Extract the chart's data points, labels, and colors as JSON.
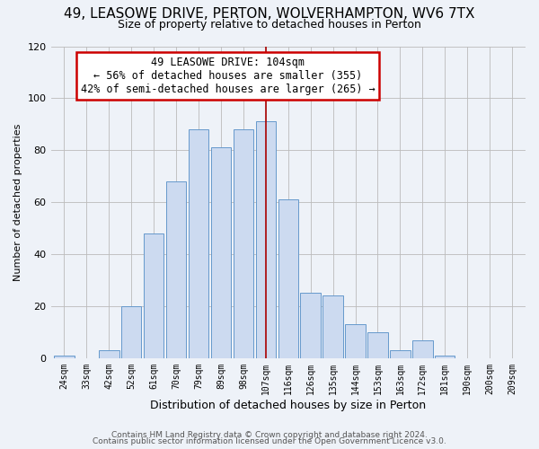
{
  "title": "49, LEASOWE DRIVE, PERTON, WOLVERHAMPTON, WV6 7TX",
  "subtitle": "Size of property relative to detached houses in Perton",
  "xlabel": "Distribution of detached houses by size in Perton",
  "ylabel": "Number of detached properties",
  "categories": [
    "24sqm",
    "33sqm",
    "42sqm",
    "52sqm",
    "61sqm",
    "70sqm",
    "79sqm",
    "89sqm",
    "98sqm",
    "107sqm",
    "116sqm",
    "126sqm",
    "135sqm",
    "144sqm",
    "153sqm",
    "163sqm",
    "172sqm",
    "181sqm",
    "190sqm",
    "200sqm",
    "209sqm"
  ],
  "values": [
    1,
    0,
    3,
    20,
    48,
    68,
    88,
    81,
    88,
    91,
    61,
    25,
    24,
    13,
    10,
    3,
    7,
    1,
    0,
    0,
    0
  ],
  "bar_color": "#ccdaf0",
  "bar_edge_color": "#6699cc",
  "property_bin_index": 9,
  "vline_color": "#aa0000",
  "annotation_line1": "49 LEASOWE DRIVE: 104sqm",
  "annotation_line2": "← 56% of detached houses are smaller (355)",
  "annotation_line3": "42% of semi-detached houses are larger (265) →",
  "annotation_box_edge_color": "#cc0000",
  "annotation_box_face_color": "#ffffff",
  "footer1": "Contains HM Land Registry data © Crown copyright and database right 2024.",
  "footer2": "Contains public sector information licensed under the Open Government Licence v3.0.",
  "ylim": [
    0,
    120
  ],
  "background_color": "#eef2f8"
}
